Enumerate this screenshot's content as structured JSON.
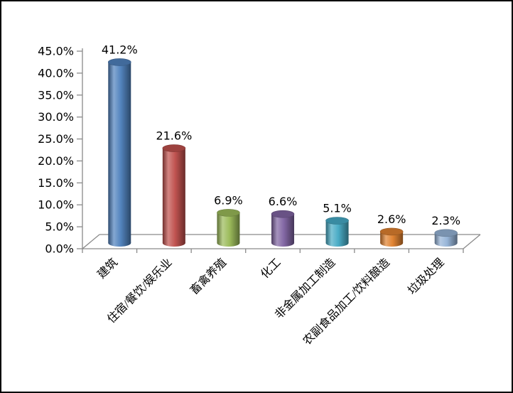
{
  "chart_data": {
    "type": "bar",
    "subtype": "3d-cylinder",
    "title": "",
    "xlabel": "",
    "ylabel": "",
    "legend_position": "none",
    "grid": false,
    "categories": [
      "建筑",
      "住宿/餐饮/娱乐业",
      "畜禽养殖",
      "化工",
      "非金属加工制造",
      "农副食品加工/饮料酿造",
      "垃圾处理"
    ],
    "values": [
      41.2,
      21.6,
      6.9,
      6.6,
      5.1,
      2.6,
      2.3
    ],
    "data_labels": [
      "41.2%",
      "21.6%",
      "6.9%",
      "6.6%",
      "5.1%",
      "2.6%",
      "2.3%"
    ],
    "ylim": [
      0,
      45
    ],
    "y_step": 5,
    "y_tick_labels": [
      "0.0%",
      "5.0%",
      "10.0%",
      "15.0%",
      "20.0%",
      "25.0%",
      "30.0%",
      "35.0%",
      "40.0%",
      "45.0%"
    ],
    "bar_colors": [
      "#4F81BD",
      "#C0504D",
      "#9BBB59",
      "#8064A2",
      "#46AAC5",
      "#E0812F",
      "#95B3D7"
    ],
    "axis_color": "#8A8A8A",
    "text_color": "#000000",
    "background_color": "#FFFFFF",
    "border_color": "#000000"
  }
}
